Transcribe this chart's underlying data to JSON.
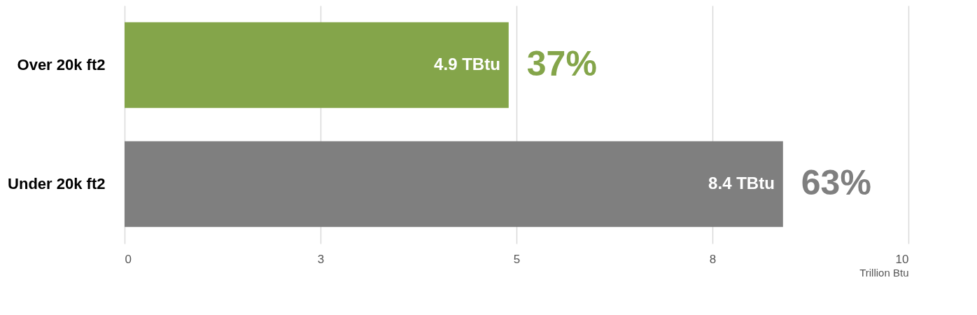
{
  "chart_data": {
    "type": "bar",
    "orientation": "horizontal",
    "categories": [
      "Over 20k ft2",
      "Under 20k ft2"
    ],
    "values": [
      4.9,
      8.4
    ],
    "colors": [
      "#84a54a",
      "#7f7f7f"
    ],
    "value_labels": [
      "4.9 TBtu",
      "8.4 TBtu"
    ],
    "annotations": [
      {
        "text": "37%",
        "x": 4.9,
        "y": "Over 20k ft2"
      },
      {
        "text": "63%",
        "x": 8.4,
        "y": "Under 20k ft2"
      }
    ],
    "xlabel": "Trillion Btu",
    "xlim": [
      0,
      10
    ],
    "xticks": [
      0,
      {
        "value": 2.5,
        "label": "3"
      },
      5,
      {
        "value": 7.5,
        "label": "8"
      },
      10
    ],
    "grid": "x"
  }
}
